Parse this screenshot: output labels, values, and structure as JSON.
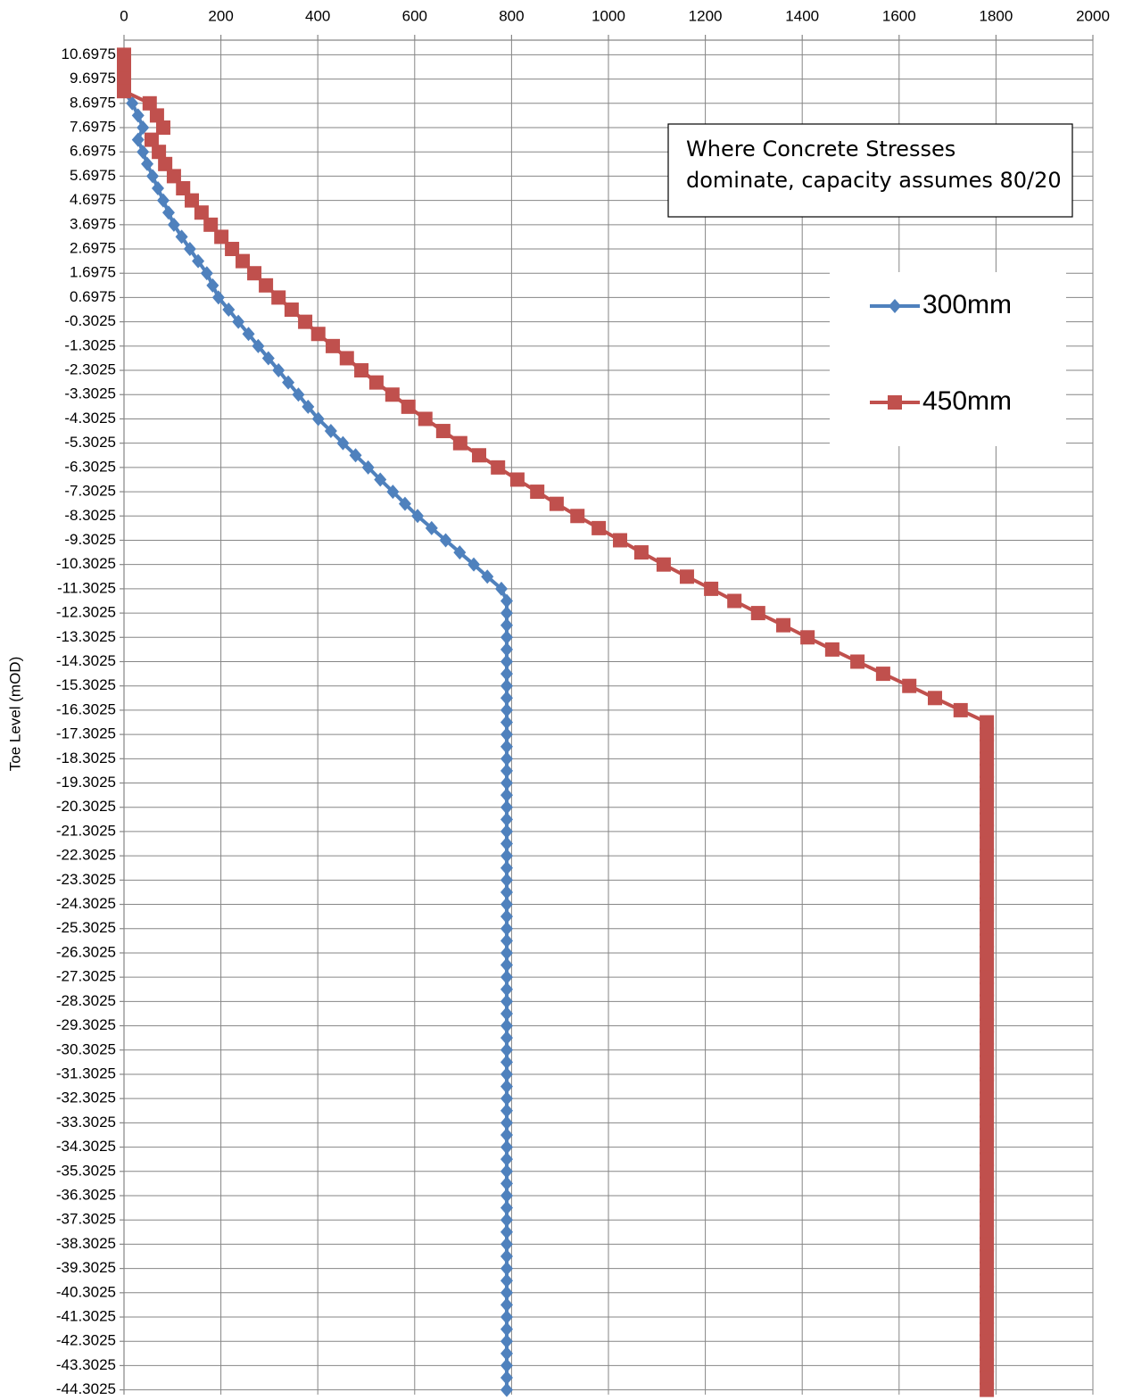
{
  "chart_data": {
    "type": "line",
    "ylabel": "Toe Level (mOD)",
    "annotation": [
      "Where Concrete Stresses",
      "dominate, capacity assumes 80/20"
    ],
    "xlim": [
      0,
      2000
    ],
    "xticks": [
      0,
      200,
      400,
      600,
      800,
      1000,
      1200,
      1400,
      1600,
      1800,
      2000
    ],
    "ylim": [
      -44.5,
      11.3
    ],
    "yticks": [
      10.6975,
      9.6975,
      8.6975,
      7.6975,
      6.6975,
      5.6975,
      4.6975,
      3.6975,
      2.6975,
      1.6975,
      0.6975,
      -0.3025,
      -1.3025,
      -2.3025,
      -3.3025,
      -4.3025,
      -5.3025,
      -6.3025,
      -7.3025,
      -8.3025,
      -9.3025,
      -10.3025,
      -11.3025,
      -12.3025,
      -13.3025,
      -14.3025,
      -15.3025,
      -16.3025,
      -17.3025,
      -18.3025,
      -19.3025,
      -20.3025,
      -21.3025,
      -22.3025,
      -23.3025,
      -24.3025,
      -25.3025,
      -26.3025,
      -27.3025,
      -28.3025,
      -29.3025,
      -30.3025,
      -31.3025,
      -32.3025,
      -33.3025,
      -34.3025,
      -35.3025,
      -36.3025,
      -37.3025,
      -38.3025,
      -39.3025,
      -40.3025,
      -41.3025,
      -42.3025,
      -43.3025,
      -44.3025
    ],
    "grid": true,
    "legend": "upper right",
    "y": [
      10.6975,
      10.1975,
      9.6975,
      9.1975,
      8.6975,
      8.1975,
      7.6975,
      7.1975,
      6.6975,
      6.1975,
      5.6975,
      5.1975,
      4.6975,
      4.1975,
      3.6975,
      3.1975,
      2.6975,
      2.1975,
      1.6975,
      1.1975,
      0.6975,
      0.1975,
      -0.3025,
      -0.8025,
      -1.3025,
      -1.8025,
      -2.3025,
      -2.8025,
      -3.3025,
      -3.8025,
      -4.3025,
      -4.8025,
      -5.3025,
      -5.8025,
      -6.3025,
      -6.8025,
      -7.3025,
      -7.8025,
      -8.3025,
      -8.8025,
      -9.3025,
      -9.8025,
      -10.3025,
      -10.8025,
      -11.3025,
      -11.8025,
      -12.3025,
      -12.8025,
      -13.3025,
      -13.8025,
      -14.3025,
      -14.8025,
      -15.3025,
      -15.8025,
      -16.3025,
      -16.8025,
      -17.3025,
      -17.8025,
      -18.3025,
      -18.8025,
      -19.3025,
      -19.8025,
      -20.3025,
      -20.8025,
      -21.3025,
      -21.8025,
      -22.3025,
      -22.8025,
      -23.3025,
      -23.8025,
      -24.3025,
      -24.8025,
      -25.3025,
      -25.8025,
      -26.3025,
      -26.8025,
      -27.3025,
      -27.8025,
      -28.3025,
      -28.8025,
      -29.3025,
      -29.8025,
      -30.3025,
      -30.8025,
      -31.3025,
      -31.8025,
      -32.3025,
      -32.8025,
      -33.3025,
      -33.8025,
      -34.3025,
      -34.8025,
      -35.3025,
      -35.8025,
      -36.3025,
      -36.8025,
      -37.3025,
      -37.8025,
      -38.3025,
      -38.8025,
      -39.3025,
      -39.8025,
      -40.3025,
      -40.8025,
      -41.3025,
      -41.8025,
      -42.3025,
      -42.8025,
      -43.3025,
      -43.8025,
      -44.3025
    ],
    "series": [
      {
        "name": "300mm",
        "color": "#4f81bd",
        "marker": "diamond",
        "values": [
          0,
          0,
          0,
          0,
          17,
          29,
          39,
          29,
          39,
          48,
          59,
          70,
          81,
          92,
          103,
          119,
          136,
          153,
          171,
          183,
          195,
          216,
          236,
          257,
          277,
          298,
          319,
          339,
          360,
          380,
          401,
          427,
          452,
          478,
          504,
          529,
          555,
          580,
          606,
          635,
          664,
          693,
          722,
          750,
          779,
          790,
          790,
          790,
          790,
          790,
          790,
          790,
          790,
          790,
          790,
          790,
          790,
          790,
          790,
          790,
          790,
          790,
          790,
          790,
          790,
          790,
          790,
          790,
          790,
          790,
          790,
          790,
          790,
          790,
          790,
          790,
          790,
          790,
          790,
          790,
          790,
          790,
          790,
          790,
          790,
          790,
          790,
          790,
          790,
          790,
          790,
          790,
          790,
          790,
          790,
          790,
          790,
          790,
          790,
          790,
          790,
          790,
          790,
          790,
          790,
          790,
          790,
          790,
          790,
          790,
          790
        ]
      },
      {
        "name": "450mm",
        "color": "#c0504d",
        "marker": "square",
        "values": [
          0,
          0,
          0,
          0,
          53,
          68,
          81,
          57,
          72,
          85,
          103,
          122,
          140,
          160,
          179,
          201,
          223,
          245,
          269,
          293,
          319,
          346,
          374,
          401,
          431,
          460,
          490,
          521,
          554,
          587,
          622,
          659,
          694,
          733,
          772,
          812,
          853,
          893,
          936,
          980,
          1024,
          1068,
          1114,
          1162,
          1212,
          1260,
          1309,
          1361,
          1411,
          1462,
          1514,
          1567,
          1621,
          1674,
          1727,
          1781,
          1781,
          1781,
          1781,
          1781,
          1781,
          1781,
          1781,
          1781,
          1781,
          1781,
          1781,
          1781,
          1781,
          1781,
          1781,
          1781,
          1781,
          1781,
          1781,
          1781,
          1781,
          1781,
          1781,
          1781,
          1781,
          1781,
          1781,
          1781,
          1781,
          1781,
          1781,
          1781,
          1781,
          1781,
          1781,
          1781,
          1781,
          1781,
          1781,
          1781,
          1781,
          1781,
          1781,
          1781,
          1781,
          1781,
          1781,
          1781,
          1781,
          1781,
          1781,
          1781,
          1781,
          1781,
          1781
        ]
      }
    ]
  }
}
